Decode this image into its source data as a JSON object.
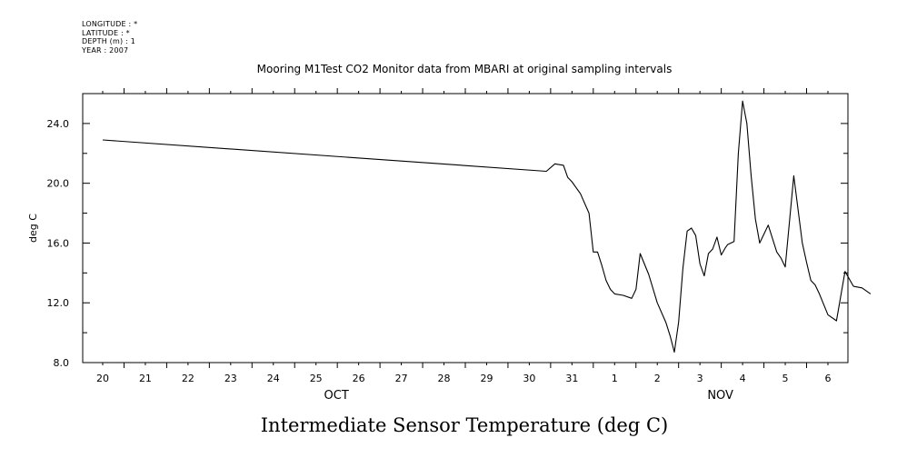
{
  "meta_lines": [
    "LONGITUDE : *",
    "LATITUDE : *",
    "DEPTH (m) : 1",
    "YEAR : 2007"
  ],
  "chart_data": {
    "type": "line",
    "title": "Mooring M1Test CO2 Monitor data from MBARI at original sampling intervals",
    "xlabel": "Intermediate Sensor Temperature (deg C)",
    "ylabel": "deg C",
    "ylim": [
      8.0,
      26.0
    ],
    "yticks": [
      "8.0",
      "12.0",
      "16.0",
      "20.0",
      "24.0"
    ],
    "xlim": [
      0,
      18
    ],
    "xticks": [
      "20",
      "21",
      "22",
      "23",
      "24",
      "25",
      "26",
      "27",
      "28",
      "29",
      "30",
      "31",
      "1",
      "2",
      "3",
      "4",
      "5",
      "6"
    ],
    "months": [
      {
        "label": "OCT",
        "at": 5.5
      },
      {
        "label": "NOV",
        "at": 14.5
      }
    ],
    "grid": false,
    "series": [
      {
        "x": [
          0.0,
          10.4,
          10.6,
          10.8,
          10.9,
          11.0,
          11.2,
          11.4,
          11.5,
          11.6,
          11.7,
          11.8,
          11.9,
          12.0,
          12.2,
          12.4,
          12.5,
          12.6,
          12.7,
          12.8,
          13.0,
          13.2,
          13.3,
          13.4,
          13.5,
          13.6,
          13.7,
          13.8,
          13.9,
          14.0,
          14.1,
          14.2,
          14.3,
          14.4,
          14.5,
          14.6,
          14.65,
          14.8,
          14.9,
          15.0,
          15.1,
          15.2,
          15.3,
          15.4,
          15.5,
          15.6,
          15.8,
          15.9,
          16.0,
          16.2,
          16.4,
          16.5,
          16.6,
          16.7,
          16.8,
          17.0,
          17.2,
          17.4,
          17.6
        ],
        "y": [
          22.9,
          20.8,
          21.3,
          21.2,
          20.4,
          20.1,
          19.3,
          18.0,
          15.4,
          15.4,
          14.5,
          13.5,
          12.9,
          12.6,
          12.5,
          12.3,
          12.9,
          15.3,
          14.6,
          13.9,
          12.0,
          10.7,
          9.8,
          8.7,
          10.7,
          14.3,
          16.8,
          17.0,
          16.5,
          14.6,
          13.8,
          15.3,
          15.6,
          16.4,
          15.2,
          15.7,
          15.9,
          16.1,
          22.0,
          25.5,
          24.0,
          20.5,
          17.6,
          16.0,
          16.6,
          17.2,
          15.4,
          15.0,
          14.4,
          20.5,
          16.0,
          14.7,
          13.5,
          13.2,
          12.6,
          11.2,
          10.8,
          14.1,
          13.1
        ]
      },
      {
        "x": [
          17.6,
          17.8,
          18.0
        ],
        "y": [
          13.1,
          13.0,
          12.6
        ]
      }
    ]
  }
}
